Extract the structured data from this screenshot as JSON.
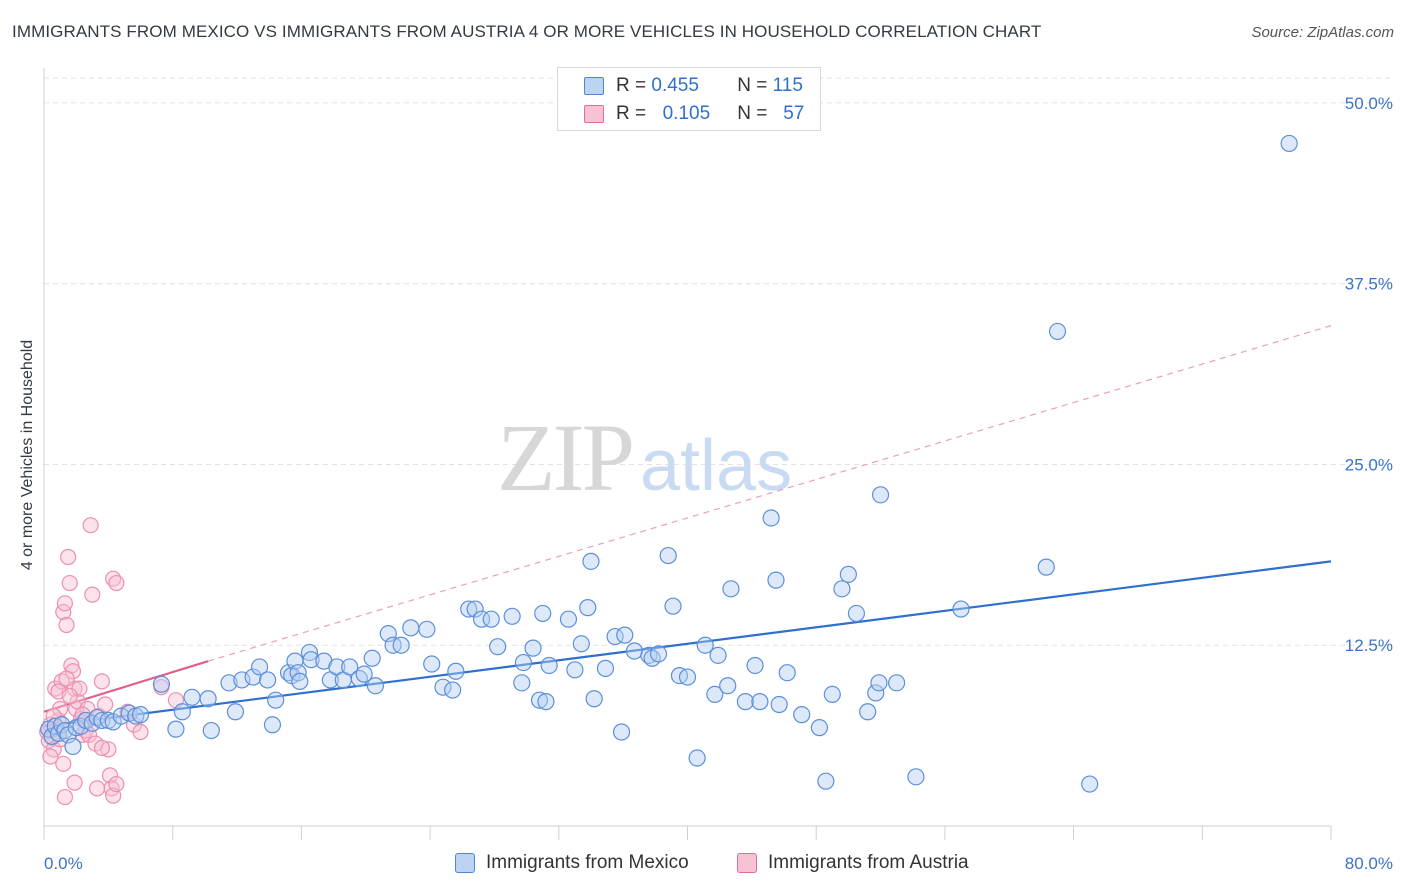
{
  "title": "IMMIGRANTS FROM MEXICO VS IMMIGRANTS FROM AUSTRIA 4 OR MORE VEHICLES IN HOUSEHOLD CORRELATION CHART",
  "source": "Source: ZipAtlas.com",
  "watermark": {
    "zip": "ZIP",
    "atlas": "atlas"
  },
  "legend": {
    "mexico": {
      "r_label": "R =",
      "r": "0.455",
      "n_label": "N =",
      "n": "115"
    },
    "austria": {
      "r_label": "R =",
      "r": "0.105",
      "n_label": "N =",
      "n": "57"
    }
  },
  "bottom_legend": {
    "mexico": "Immigrants from Mexico",
    "austria": "Immigrants from Austria"
  },
  "colors": {
    "mexico": "#4f86d8",
    "mexico_fill": "#bcd3f2",
    "austria": "#e86b97",
    "austria_fill": "#f6c3d4",
    "tick": "#3b73c8"
  },
  "chart_data": {
    "type": "scatter",
    "xlabel": "",
    "ylabel": "4 or more Vehicles in Household",
    "xlim": [
      0,
      80
    ],
    "ylim": [
      0,
      52
    ],
    "x_tick_labels": [
      "0.0%",
      "80.0%"
    ],
    "y_ticks": [
      12.5,
      25.0,
      37.5,
      50.0
    ],
    "y_tick_labels": [
      "12.5%",
      "25.0%",
      "37.5%",
      "50.0%"
    ],
    "grid": true,
    "series": [
      {
        "name": "Immigrants from Mexico",
        "color": "#4f86d8",
        "trend": {
          "x": [
            0,
            80
          ],
          "y": [
            6.9,
            18.3
          ],
          "style": "solid"
        },
        "points": [
          [
            0.3,
            6.7
          ],
          [
            0.5,
            6.2
          ],
          [
            0.7,
            6.9
          ],
          [
            0.9,
            6.4
          ],
          [
            1.1,
            7.0
          ],
          [
            1.3,
            6.6
          ],
          [
            1.5,
            6.3
          ],
          [
            1.8,
            5.5
          ],
          [
            2.0,
            6.8
          ],
          [
            2.3,
            6.9
          ],
          [
            2.6,
            7.3
          ],
          [
            3.0,
            7.1
          ],
          [
            3.3,
            7.5
          ],
          [
            3.6,
            7.3
          ],
          [
            4.0,
            7.3
          ],
          [
            4.3,
            7.2
          ],
          [
            4.8,
            7.6
          ],
          [
            5.3,
            7.8
          ],
          [
            5.7,
            7.6
          ],
          [
            6.0,
            7.7
          ],
          [
            7.3,
            9.8
          ],
          [
            8.2,
            6.7
          ],
          [
            8.6,
            7.9
          ],
          [
            9.2,
            8.9
          ],
          [
            10.2,
            8.8
          ],
          [
            10.4,
            6.6
          ],
          [
            11.5,
            9.9
          ],
          [
            11.9,
            7.9
          ],
          [
            12.3,
            10.1
          ],
          [
            13.0,
            10.3
          ],
          [
            13.4,
            11.0
          ],
          [
            13.9,
            10.1
          ],
          [
            14.2,
            7.0
          ],
          [
            14.4,
            8.7
          ],
          [
            15.2,
            10.6
          ],
          [
            15.4,
            10.4
          ],
          [
            15.6,
            11.4
          ],
          [
            15.8,
            10.6
          ],
          [
            15.9,
            10.0
          ],
          [
            16.5,
            12.0
          ],
          [
            16.6,
            11.5
          ],
          [
            17.4,
            11.4
          ],
          [
            17.8,
            10.1
          ],
          [
            18.2,
            11.0
          ],
          [
            18.6,
            10.1
          ],
          [
            19.0,
            11.0
          ],
          [
            19.6,
            10.2
          ],
          [
            19.9,
            10.5
          ],
          [
            20.4,
            11.6
          ],
          [
            20.6,
            9.7
          ],
          [
            21.4,
            13.3
          ],
          [
            21.7,
            12.5
          ],
          [
            22.2,
            12.5
          ],
          [
            22.8,
            13.7
          ],
          [
            23.8,
            13.6
          ],
          [
            24.1,
            11.2
          ],
          [
            24.8,
            9.6
          ],
          [
            25.4,
            9.4
          ],
          [
            25.6,
            10.7
          ],
          [
            26.4,
            15.0
          ],
          [
            26.8,
            15.0
          ],
          [
            27.2,
            14.3
          ],
          [
            27.8,
            14.3
          ],
          [
            28.2,
            12.4
          ],
          [
            29.1,
            14.5
          ],
          [
            29.7,
            9.9
          ],
          [
            29.8,
            11.3
          ],
          [
            30.4,
            12.3
          ],
          [
            30.8,
            8.7
          ],
          [
            31.0,
            14.7
          ],
          [
            31.2,
            8.6
          ],
          [
            31.4,
            11.1
          ],
          [
            32.6,
            14.3
          ],
          [
            33.0,
            10.8
          ],
          [
            33.4,
            12.6
          ],
          [
            33.8,
            15.1
          ],
          [
            34.0,
            18.3
          ],
          [
            34.2,
            8.8
          ],
          [
            34.9,
            10.9
          ],
          [
            35.5,
            13.1
          ],
          [
            35.9,
            6.5
          ],
          [
            36.1,
            13.2
          ],
          [
            36.7,
            12.1
          ],
          [
            37.6,
            11.8
          ],
          [
            37.8,
            11.6
          ],
          [
            38.2,
            11.9
          ],
          [
            38.8,
            18.7
          ],
          [
            39.1,
            15.2
          ],
          [
            39.5,
            10.4
          ],
          [
            40.0,
            10.3
          ],
          [
            40.6,
            4.7
          ],
          [
            41.1,
            12.5
          ],
          [
            41.7,
            9.1
          ],
          [
            41.9,
            11.8
          ],
          [
            42.5,
            9.7
          ],
          [
            42.7,
            16.4
          ],
          [
            43.6,
            8.6
          ],
          [
            44.2,
            11.1
          ],
          [
            44.5,
            8.6
          ],
          [
            45.2,
            21.3
          ],
          [
            45.5,
            17.0
          ],
          [
            45.7,
            8.4
          ],
          [
            46.2,
            10.6
          ],
          [
            47.1,
            7.7
          ],
          [
            48.2,
            6.8
          ],
          [
            48.6,
            3.1
          ],
          [
            49.0,
            9.1
          ],
          [
            49.6,
            16.4
          ],
          [
            50.0,
            17.4
          ],
          [
            50.5,
            14.7
          ],
          [
            51.2,
            7.9
          ],
          [
            51.7,
            9.2
          ],
          [
            51.9,
            9.9
          ],
          [
            52.0,
            22.9
          ],
          [
            53.0,
            9.9
          ],
          [
            54.2,
            3.4
          ],
          [
            57.0,
            15.0
          ],
          [
            63.0,
            34.2
          ],
          [
            62.3,
            17.9
          ],
          [
            65.0,
            2.9
          ],
          [
            77.4,
            47.2
          ]
        ]
      },
      {
        "name": "Immigrants from Austria",
        "color": "#e86b97",
        "trend": {
          "x": [
            0,
            10.2
          ],
          "y": [
            7.9,
            11.4
          ],
          "style": "solid"
        },
        "trend_extension": {
          "x": [
            10.2,
            80
          ],
          "y": [
            11.4,
            34.6
          ],
          "style": "dashed"
        },
        "points": [
          [
            0.2,
            6.5
          ],
          [
            0.3,
            5.9
          ],
          [
            0.4,
            7.0
          ],
          [
            0.5,
            6.1
          ],
          [
            0.6,
            5.3
          ],
          [
            0.7,
            9.5
          ],
          [
            0.8,
            6.8
          ],
          [
            0.9,
            7.3
          ],
          [
            1.0,
            8.1
          ],
          [
            1.1,
            10.0
          ],
          [
            1.0,
            6.0
          ],
          [
            1.2,
            14.8
          ],
          [
            1.3,
            15.4
          ],
          [
            1.4,
            13.9
          ],
          [
            1.5,
            18.6
          ],
          [
            1.6,
            16.8
          ],
          [
            1.7,
            11.1
          ],
          [
            1.8,
            10.7
          ],
          [
            1.9,
            9.5
          ],
          [
            2.0,
            8.1
          ],
          [
            2.1,
            8.6
          ],
          [
            2.2,
            9.5
          ],
          [
            2.3,
            7.4
          ],
          [
            2.4,
            6.3
          ],
          [
            2.5,
            7.3
          ],
          [
            2.6,
            6.6
          ],
          [
            2.7,
            8.1
          ],
          [
            2.8,
            6.3
          ],
          [
            2.9,
            20.8
          ],
          [
            3.0,
            16.0
          ],
          [
            3.2,
            5.7
          ],
          [
            3.4,
            7.6
          ],
          [
            3.6,
            10.0
          ],
          [
            3.8,
            8.4
          ],
          [
            4.0,
            5.3
          ],
          [
            4.1,
            3.5
          ],
          [
            4.2,
            2.6
          ],
          [
            4.3,
            2.1
          ],
          [
            4.5,
            2.9
          ],
          [
            3.3,
            2.6
          ],
          [
            1.9,
            3.0
          ],
          [
            1.3,
            2.0
          ],
          [
            1.2,
            4.3
          ],
          [
            0.4,
            4.8
          ],
          [
            0.6,
            7.6
          ],
          [
            0.9,
            9.3
          ],
          [
            1.4,
            10.2
          ],
          [
            1.6,
            9.0
          ],
          [
            2.4,
            7.7
          ],
          [
            3.6,
            5.4
          ],
          [
            4.3,
            17.1
          ],
          [
            4.5,
            16.8
          ],
          [
            5.2,
            7.9
          ],
          [
            5.6,
            7.0
          ],
          [
            6.0,
            6.5
          ],
          [
            7.3,
            9.6
          ],
          [
            8.2,
            8.7
          ]
        ]
      }
    ]
  }
}
